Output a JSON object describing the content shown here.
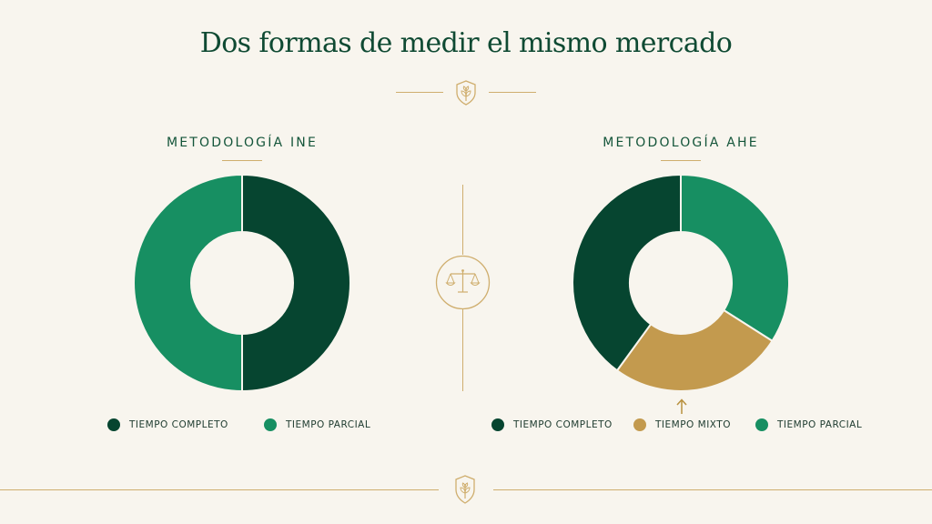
{
  "title": "Dos formas de medir el mismo mercado",
  "colors": {
    "background": "#f8f5ee",
    "gold": "#cfae6e",
    "dark_green": "#064530",
    "medium_green": "#178f62",
    "tan": "#c39a4e",
    "title_green": "#0f4a33"
  },
  "icons": {
    "title_emblem": "leaf-shield-icon",
    "center": "balance-scale-icon",
    "highlight": "arrow-up-icon",
    "footer_emblem": "leaf-shield-icon"
  },
  "chart_data": [
    {
      "type": "pie",
      "title": "METODOLOGÍA INE",
      "donut": true,
      "categories": [
        "TIEMPO COMPLETO",
        "TIEMPO PARCIAL"
      ],
      "values": [
        50,
        50
      ],
      "colors": [
        "#064530",
        "#178f62"
      ],
      "legend_position": "bottom"
    },
    {
      "type": "pie",
      "title": "METODOLOGÍA AHE",
      "donut": true,
      "categories": [
        "TIEMPO COMPLETO",
        "TIEMPO MIXTO",
        "TIEMPO PARCIAL"
      ],
      "values": [
        40,
        26,
        34
      ],
      "segment_order": [
        "TIEMPO PARCIAL",
        "TIEMPO MIXTO",
        "TIEMPO COMPLETO"
      ],
      "colors": [
        "#064530",
        "#c39a4e",
        "#178f62"
      ],
      "highlighted": "TIEMPO MIXTO",
      "legend_position": "bottom"
    }
  ]
}
